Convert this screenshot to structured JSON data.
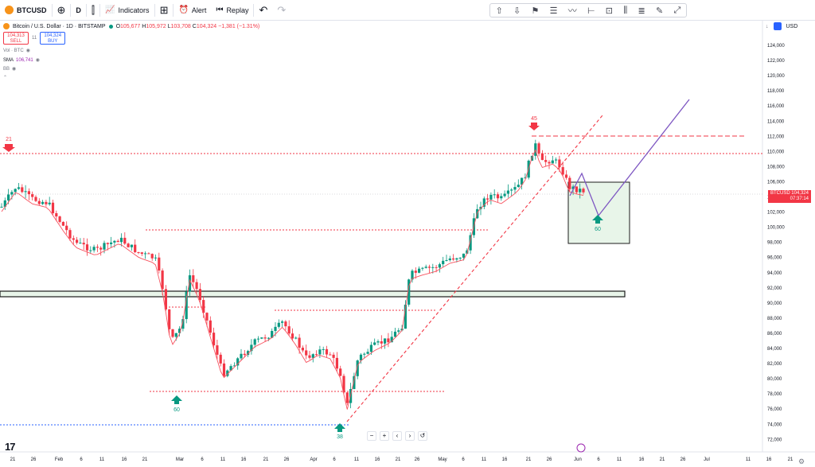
{
  "toolbar": {
    "symbol": "BTCUSD",
    "add_symbol_icon": "plus-circle-icon",
    "interval": "D",
    "bars_icon": "candles-icon",
    "indicators_label": "Indicators",
    "templates_icon": "grid-icon",
    "alert_label": "Alert",
    "replay_label": "Replay",
    "undo_icon": "undo-icon",
    "redo_icon": "redo-icon"
  },
  "drawing_tools": [
    "arrow-up-icon",
    "arrow-down-icon",
    "flag-icon",
    "long-position-icon",
    "path-icon",
    "range-icon",
    "date-price-range-icon",
    "bars-pattern-icon",
    "fib-icon",
    "brush-icon",
    "measure-icon"
  ],
  "legend": {
    "title": "Bitcoin / U.S. Dollar · 1D · BITSTAMP",
    "o_label": "O",
    "o": "105,677",
    "h_label": "H",
    "h": "105,972",
    "l_label": "L",
    "l": "103,708",
    "c_label": "C",
    "c": "104,324",
    "change": "−1,381 (−1.31%)",
    "sell_price": "104,313",
    "sell_label": "SELL",
    "spread": "11",
    "buy_price": "104,324",
    "buy_label": "BUY",
    "vol_label": "Vol · BTC",
    "sma_label": "SMA",
    "sma_value": "106,741",
    "bb_label": "BB"
  },
  "right_header": {
    "currency": "USD"
  },
  "current_price_tag": {
    "symbol": "BTCUSD",
    "price": "104,324",
    "countdown": "07:37:14"
  },
  "price_scale": [
    "124,000",
    "122,000",
    "120,000",
    "118,000",
    "116,000",
    "114,000",
    "112,000",
    "110,000",
    "108,000",
    "106,000",
    "104,000",
    "102,000",
    "100,000",
    "98,000",
    "96,000",
    "94,000",
    "92,000",
    "90,000",
    "88,000",
    "86,000",
    "84,000",
    "82,000",
    "80,000",
    "78,000",
    "76,000",
    "74,000",
    "72,000"
  ],
  "time_axis": [
    "21",
    "26",
    "Feb",
    "6",
    "11",
    "16",
    "21",
    "Mar",
    "6",
    "11",
    "16",
    "21",
    "26",
    "Apr",
    "6",
    "11",
    "16",
    "21",
    "26",
    "May",
    "6",
    "11",
    "16",
    "21",
    "26",
    "Jun",
    "6",
    "11",
    "16",
    "21",
    "26",
    "Jul",
    "11",
    "16",
    "21"
  ],
  "annotations": {
    "arrow_21": "21",
    "arrow_45": "45",
    "arrow_60_left": "60",
    "arrow_38": "38",
    "arrow_60_box": "60"
  },
  "zoom_controls": [
    "−",
    "+",
    "‹",
    "›",
    "↺"
  ],
  "colors": {
    "up": "#089981",
    "down": "#f23645",
    "sma": "#f7525f",
    "projection": "#7e57c2",
    "support_box": "#2e7d32",
    "box_fill": "#e8f5e9"
  }
}
